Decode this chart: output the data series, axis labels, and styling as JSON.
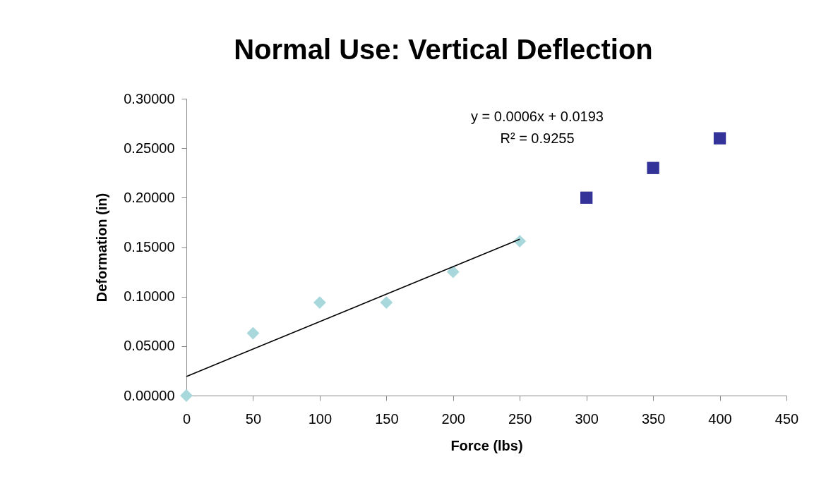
{
  "chart_data": {
    "type": "scatter",
    "title": "Normal Use: Vertical Deflection",
    "xlabel": "Force (lbs)",
    "ylabel": "Deformation (in)",
    "series": [
      {
        "color": "#a8d8dc",
        "marker": "diamond",
        "x": [
          0,
          50,
          100,
          150,
          200,
          250
        ],
        "values": [
          0,
          0.063,
          0.094,
          0.094,
          0.125,
          0.156
        ]
      },
      {
        "color": "#333399",
        "marker": "square",
        "x": [
          300,
          350,
          400
        ],
        "values": [
          0.2,
          0.23,
          0.26
        ]
      },
      {
        "type": "line",
        "color": "#000000",
        "x": [
          0,
          250
        ],
        "values": [
          0.0193,
          0.158
        ]
      }
    ],
    "annotations": [
      "y = 0.0006x + 0.0193",
      "R² = 0.9255"
    ],
    "xlim": [
      0,
      450
    ],
    "xticks": [
      0,
      50,
      100,
      150,
      200,
      250,
      300,
      350,
      400,
      450
    ],
    "ylim": [
      0,
      0.3
    ],
    "yticks": [
      {
        "value": 0,
        "label": "0.00000"
      },
      {
        "value": 0.05,
        "label": "0.05000"
      },
      {
        "value": 0.1,
        "label": "0.10000"
      },
      {
        "value": 0.15,
        "label": "0.15000"
      },
      {
        "value": 0.2,
        "label": "0.20000"
      },
      {
        "value": 0.25,
        "label": "0.25000"
      },
      {
        "value": 0.3,
        "label": "0.30000"
      }
    ],
    "grid": false
  }
}
